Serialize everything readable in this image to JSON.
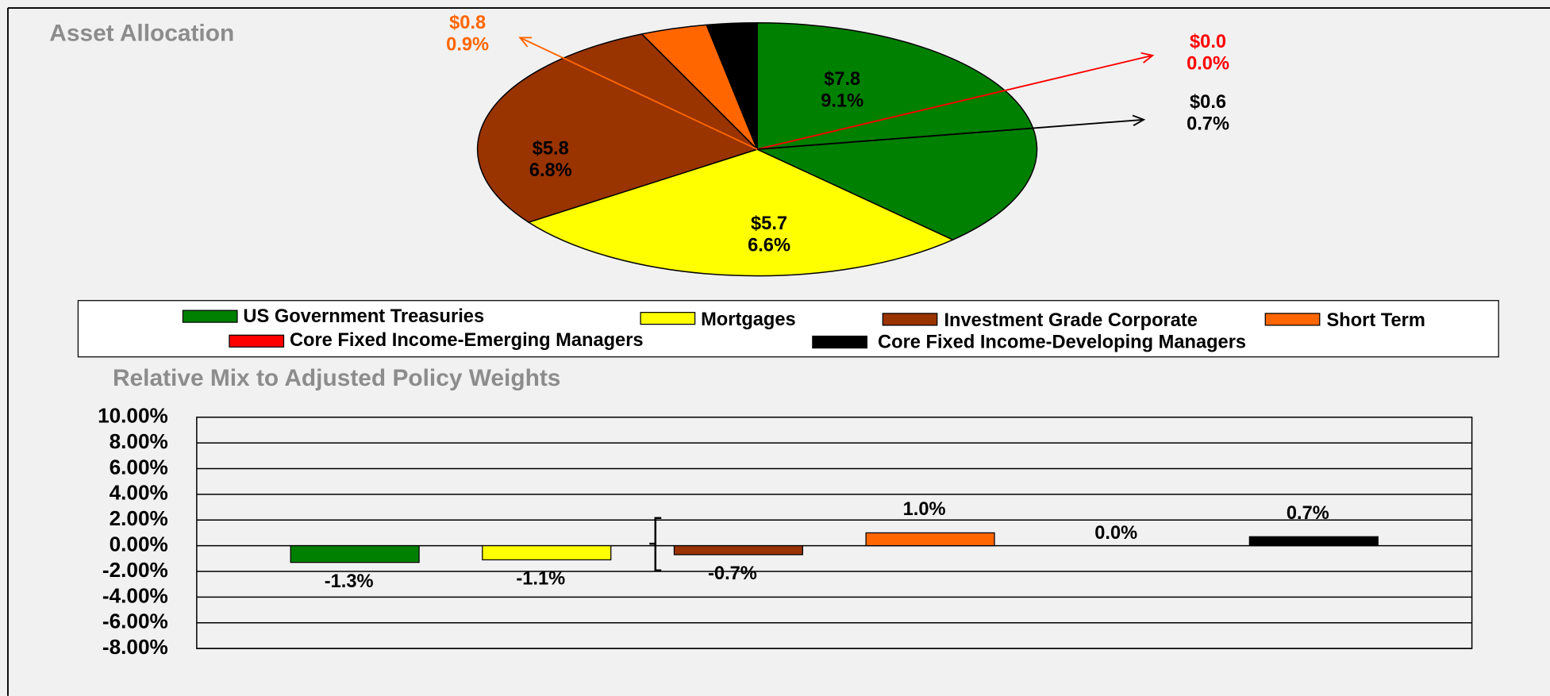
{
  "chart_data": [
    {
      "type": "pie",
      "title": "Asset Allocation",
      "series": [
        {
          "name": "US Government Treasuries",
          "color": "#008000"
        },
        {
          "name": "Mortgages",
          "color": "#ffff00"
        },
        {
          "name": "Investment Grade Corporate",
          "color": "#993300"
        },
        {
          "name": "Short Term",
          "color": "#ff6600"
        },
        {
          "name": "Core Fixed Income-Emerging Managers",
          "color": "#ff0000"
        },
        {
          "name": "Core Fixed Income-Developing Managers",
          "color": "#000000"
        }
      ],
      "values": [
        7.8,
        5.7,
        5.8,
        0.8,
        0.0,
        0.6
      ],
      "value_labels": [
        "$7.8",
        "$5.7",
        "$5.8",
        "$0.8",
        "$0.0",
        "$0.6"
      ],
      "percent_labels": [
        "9.1%",
        "6.6%",
        "6.8%",
        "0.9%",
        "0.0%",
        "0.7%"
      ]
    },
    {
      "type": "bar",
      "title": "Relative Mix to Adjusted Policy Weights",
      "values": [
        -1.3,
        -1.1,
        -0.7,
        1.0,
        0.0,
        0.7
      ],
      "value_labels": [
        "-1.3%",
        "-1.1%",
        "-0.7%",
        "1.0%",
        "0.0%",
        "0.7%"
      ],
      "colors": [
        "#008000",
        "#ffff00",
        "#993300",
        "#ff6600",
        "#ff0000",
        "#000000"
      ],
      "ylim": [
        -8,
        10
      ],
      "yticks": [
        {
          "value": -8,
          "label": "-8.00%"
        },
        {
          "value": -6,
          "label": "-6.00%"
        },
        {
          "value": -4,
          "label": "-4.00%"
        },
        {
          "value": -2,
          "label": "-2.00%"
        },
        {
          "value": 0,
          "label": "0.00%"
        },
        {
          "value": 2,
          "label": "2.00%"
        },
        {
          "value": 4,
          "label": "4.00%"
        },
        {
          "value": 6,
          "label": "6.00%"
        },
        {
          "value": 8,
          "label": "8.00%"
        },
        {
          "value": 10,
          "label": "10.00%"
        }
      ],
      "grid": true
    }
  ]
}
